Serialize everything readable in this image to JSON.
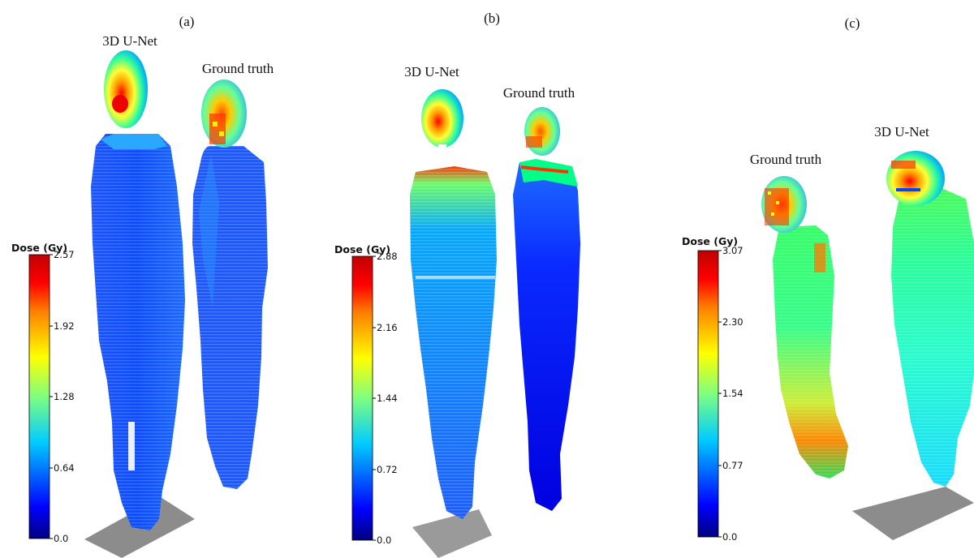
{
  "panels": [
    {
      "letter": "(a)",
      "figure_labels": [
        "3D U-Net",
        "Ground truth"
      ],
      "colorbar": {
        "title": "Dose (Gy)",
        "ticks": [
          "2.57",
          "1.92",
          "1.28",
          "0.64",
          "0.0"
        ]
      }
    },
    {
      "letter": "(b)",
      "figure_labels": [
        "3D U-Net",
        "Ground truth"
      ],
      "colorbar": {
        "title": "Dose (Gy)",
        "ticks": [
          "2.88",
          "2.16",
          "1.44",
          "0.72",
          "0.0"
        ]
      }
    },
    {
      "letter": "(c)",
      "figure_labels": [
        "Ground truth",
        "3D U-Net"
      ],
      "colorbar": {
        "title": "Dose (Gy)",
        "ticks": [
          "3.07",
          "2.30",
          "1.54",
          "0.77",
          "0.0"
        ]
      }
    }
  ],
  "colors": {
    "jet": [
      "#00007f",
      "#0000ff",
      "#0080ff",
      "#00ffff",
      "#80ff80",
      "#ffff00",
      "#ff8000",
      "#ff0000",
      "#7f0000"
    ],
    "floor": "#8c8c8c"
  }
}
